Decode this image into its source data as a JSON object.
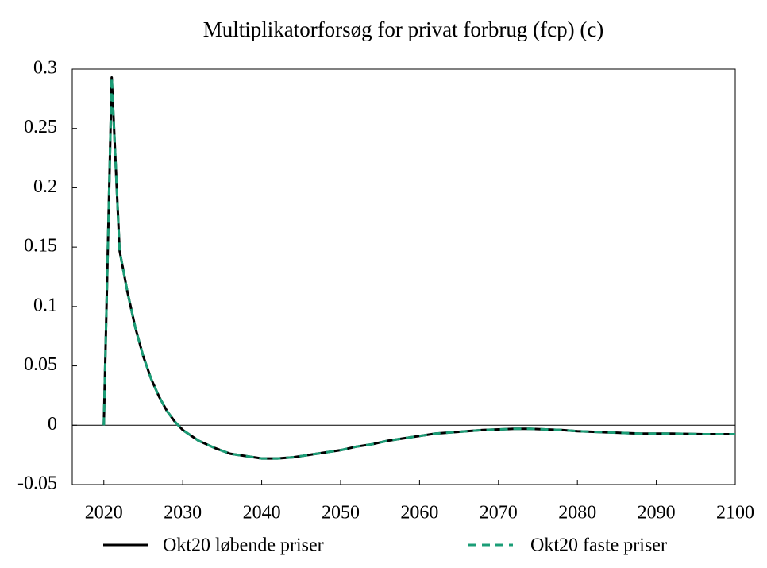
{
  "chart_data": {
    "type": "line",
    "title": "Multiplikatorforsøg for privat forbrug (fcp) (c)",
    "x": [
      2020,
      2021,
      2022,
      2023,
      2024,
      2025,
      2026,
      2027,
      2028,
      2029,
      2030,
      2032,
      2034,
      2036,
      2038,
      2040,
      2042,
      2044,
      2046,
      2048,
      2050,
      2052,
      2054,
      2056,
      2058,
      2060,
      2062,
      2064,
      2066,
      2068,
      2070,
      2072,
      2074,
      2076,
      2078,
      2080,
      2084,
      2088,
      2092,
      2096,
      2100
    ],
    "series": [
      {
        "name": "Okt20 løbende priser",
        "color": "#000000",
        "line_style": "solid",
        "values": [
          0,
          0.293,
          0.147,
          0.112,
          0.082,
          0.058,
          0.039,
          0.024,
          0.012,
          0.003,
          -0.004,
          -0.013,
          -0.019,
          -0.024,
          -0.026,
          -0.028,
          -0.028,
          -0.027,
          -0.025,
          -0.023,
          -0.021,
          -0.018,
          -0.016,
          -0.013,
          -0.011,
          -0.009,
          -0.007,
          -0.006,
          -0.005,
          -0.004,
          -0.0035,
          -0.003,
          -0.003,
          -0.0035,
          -0.004,
          -0.005,
          -0.006,
          -0.007,
          -0.007,
          -0.0075,
          -0.0075
        ]
      },
      {
        "name": "Okt20 faste priser",
        "color": "#1b9e77",
        "line_style": "dashed",
        "values": [
          0,
          0.293,
          0.147,
          0.112,
          0.082,
          0.058,
          0.039,
          0.024,
          0.012,
          0.003,
          -0.004,
          -0.013,
          -0.019,
          -0.024,
          -0.026,
          -0.028,
          -0.028,
          -0.027,
          -0.025,
          -0.023,
          -0.021,
          -0.018,
          -0.016,
          -0.013,
          -0.011,
          -0.009,
          -0.007,
          -0.006,
          -0.005,
          -0.004,
          -0.0035,
          -0.003,
          -0.003,
          -0.0035,
          -0.004,
          -0.005,
          -0.006,
          -0.007,
          -0.007,
          -0.0075,
          -0.0075
        ]
      }
    ],
    "xlim": [
      2016,
      2100
    ],
    "xticks": [
      2020,
      2030,
      2040,
      2050,
      2060,
      2070,
      2080,
      2090,
      2100
    ],
    "ylim": [
      -0.05,
      0.3
    ],
    "yticks": [
      -0.05,
      0,
      0.05,
      0.1,
      0.15,
      0.2,
      0.25,
      0.3
    ],
    "reference_line": 0,
    "grid": false,
    "legend": "bottom"
  }
}
